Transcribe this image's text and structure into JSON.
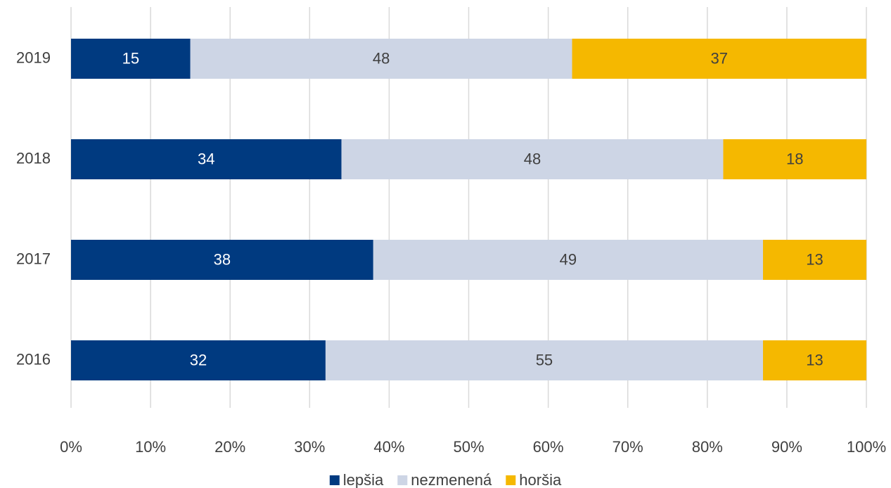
{
  "chart_data": {
    "type": "stacked_horizontal_bar",
    "categories": [
      "2019",
      "2018",
      "2017",
      "2016"
    ],
    "series": [
      {
        "name": "lepšia",
        "color": "#003a80",
        "values": [
          15,
          34,
          38,
          32
        ]
      },
      {
        "name": "nezmenená",
        "color": "#cdd5e5",
        "values": [
          48,
          48,
          49,
          55
        ]
      },
      {
        "name": "horšia",
        "color": "#f5b800",
        "values": [
          37,
          18,
          13,
          13
        ]
      }
    ],
    "xlim": [
      0,
      100
    ],
    "xticks": [
      {
        "value": 0,
        "label": "0%"
      },
      {
        "value": 10,
        "label": "10%"
      },
      {
        "value": 20,
        "label": "20%"
      },
      {
        "value": 30,
        "label": "30%"
      },
      {
        "value": 40,
        "label": "40%"
      },
      {
        "value": 50,
        "label": "50%"
      },
      {
        "value": 60,
        "label": "60%"
      },
      {
        "value": 70,
        "label": "70%"
      },
      {
        "value": 80,
        "label": "80%"
      },
      {
        "value": 90,
        "label": "90%"
      },
      {
        "value": 100,
        "label": "100%"
      }
    ],
    "grid": true,
    "legend": "bottom"
  }
}
